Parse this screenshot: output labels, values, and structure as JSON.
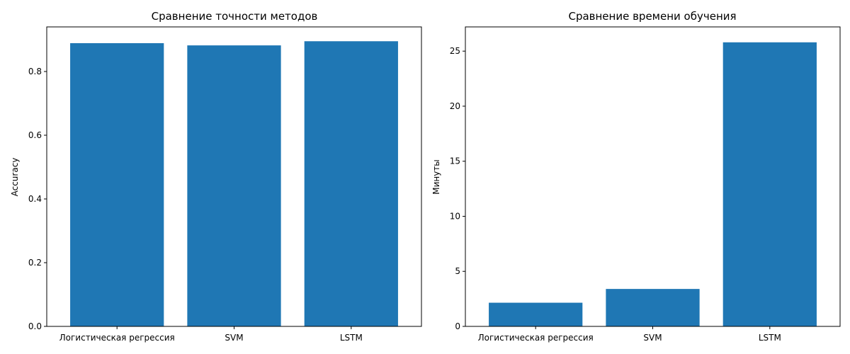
{
  "chart_data": [
    {
      "type": "bar",
      "title": "Сравнение точности методов",
      "xlabel": "",
      "ylabel": "Accuracy",
      "categories": [
        "Логистическая регрессия",
        "SVM",
        "LSTM"
      ],
      "values": [
        0.889,
        0.882,
        0.895
      ],
      "ylim": [
        0,
        0.94
      ],
      "yticks": [
        "0.0",
        "0.2",
        "0.4",
        "0.6",
        "0.8"
      ],
      "ytick_values": [
        0,
        0.2,
        0.4,
        0.6,
        0.8
      ],
      "grid": false,
      "bar_color": "#1f77b4"
    },
    {
      "type": "bar",
      "title": "Сравнение времени обучения",
      "xlabel": "",
      "ylabel": "Минуты",
      "categories": [
        "Логистическая регрессия",
        "SVM",
        "LSTM"
      ],
      "values": [
        2.15,
        3.4,
        25.8
      ],
      "ylim": [
        0,
        27.2
      ],
      "yticks": [
        "0",
        "5",
        "10",
        "15",
        "20",
        "25"
      ],
      "ytick_values": [
        0,
        5,
        10,
        15,
        20,
        25
      ],
      "grid": false,
      "bar_color": "#1f77b4"
    }
  ]
}
